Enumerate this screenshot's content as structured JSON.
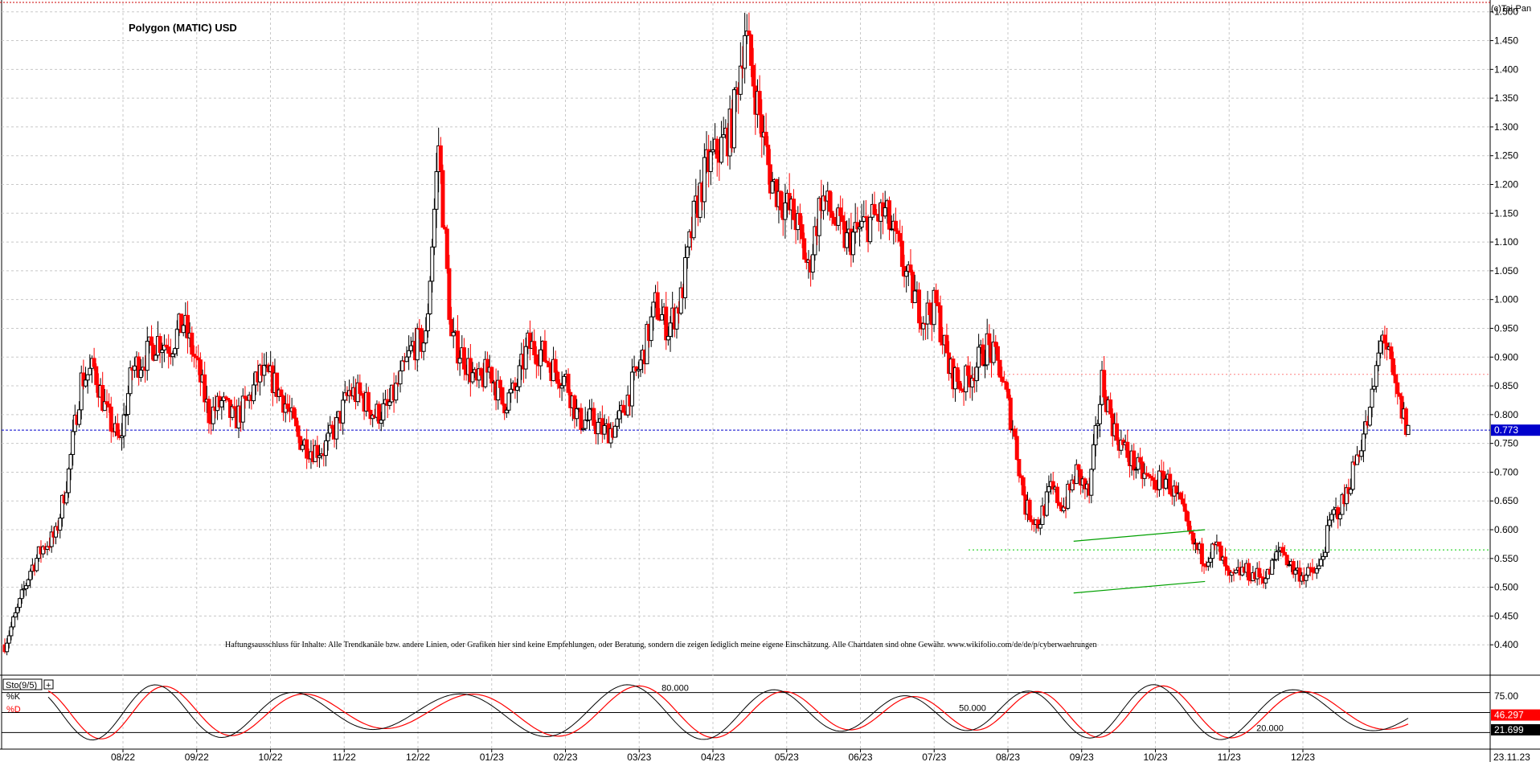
{
  "chart_data": {
    "type": "candlestick",
    "title": "Polygon (MATIC) USD",
    "copyright": "(c)Tai-Pan",
    "disclaimer": "Haftungsausschluss für Inhalte: Alle Trendkanäle bzw. andere Linien, oder Grafiken hier sind keine Empfehlungen, oder Beratung, sondern die zeigen lediglich meine eigene Einschätzung. Alle Chartdaten sind ohne Gewähr. www.wikifolio.com/de/de/p/cyberwaehrungen",
    "grid": true,
    "colors": {
      "up": "#000000",
      "down": "#ff0000",
      "last_price": "#0000cc",
      "trend": "#00a000",
      "k_line": "#000000",
      "d_line": "#ff0000"
    },
    "y_ticks": [
      "1.500",
      "1.450",
      "1.400",
      "1.350",
      "1.300",
      "1.250",
      "1.200",
      "1.150",
      "1.100",
      "1.050",
      "1.000",
      "0.950",
      "0.900",
      "0.850",
      "0.800",
      "0.750",
      "0.700",
      "0.650",
      "0.600",
      "0.550",
      "0.500",
      "0.450",
      "0.400"
    ],
    "ylim": [
      0.35,
      1.515
    ],
    "x_ticks": [
      "08/22",
      "09/22",
      "10/22",
      "11/22",
      "12/22",
      "01/23",
      "02/23",
      "03/23",
      "04/23",
      "05/23",
      "06/23",
      "07/23",
      "08/23",
      "09/23",
      "10/23",
      "11/23",
      "12/23"
    ],
    "x_end_label": "23.11.23",
    "last_price": 0.773,
    "last_price_label": "0.773",
    "weekly_closes": [
      0.4,
      0.46,
      0.53,
      0.57,
      0.59,
      0.7,
      0.86,
      0.88,
      0.8,
      0.75,
      0.88,
      0.9,
      0.93,
      0.92,
      0.96,
      0.89,
      0.8,
      0.82,
      0.79,
      0.82,
      0.87,
      0.86,
      0.82,
      0.76,
      0.74,
      0.74,
      0.78,
      0.84,
      0.83,
      0.8,
      0.81,
      0.86,
      0.92,
      0.93,
      1.27,
      0.93,
      0.9,
      0.85,
      0.88,
      0.82,
      0.84,
      0.92,
      0.91,
      0.88,
      0.86,
      0.79,
      0.79,
      0.77,
      0.78,
      0.84,
      0.9,
      0.99,
      0.95,
      1.0,
      1.14,
      1.23,
      1.26,
      1.3,
      1.47,
      1.34,
      1.21,
      1.17,
      1.14,
      1.05,
      1.18,
      1.14,
      1.1,
      1.12,
      1.14,
      1.15,
      1.09,
      1.02,
      0.97,
      0.99,
      0.88,
      0.85,
      0.88,
      0.92,
      0.88,
      0.78,
      0.64,
      0.61,
      0.67,
      0.64,
      0.7,
      0.66,
      0.86,
      0.77,
      0.73,
      0.7,
      0.68,
      0.69,
      0.65,
      0.58,
      0.55,
      0.57,
      0.51,
      0.53,
      0.52,
      0.52,
      0.57,
      0.53,
      0.52,
      0.53,
      0.62,
      0.65,
      0.73,
      0.8,
      0.95,
      0.84,
      0.77
    ],
    "trend_lines": [
      {
        "from": [
          "09/23",
          0.58
        ],
        "to": [
          "11/23",
          0.6
        ]
      },
      {
        "from": [
          "09/23",
          0.49
        ],
        "to": [
          "11/23",
          0.51
        ]
      }
    ],
    "level_lines": [
      {
        "y": 0.565,
        "color": "#00cc00",
        "style": "dotted"
      },
      {
        "y": 0.87,
        "color": "#ff8080",
        "style": "dotted"
      }
    ],
    "indicator": {
      "label": "Sto(9/5)",
      "k_label": "%K",
      "d_label": "%D",
      "levels": [
        "80.000",
        "50.000",
        "20.000"
      ],
      "right_ticks": [
        "75.00"
      ],
      "k_value": "21.699",
      "d_value": "46.297",
      "ylim": [
        0,
        100
      ]
    }
  }
}
